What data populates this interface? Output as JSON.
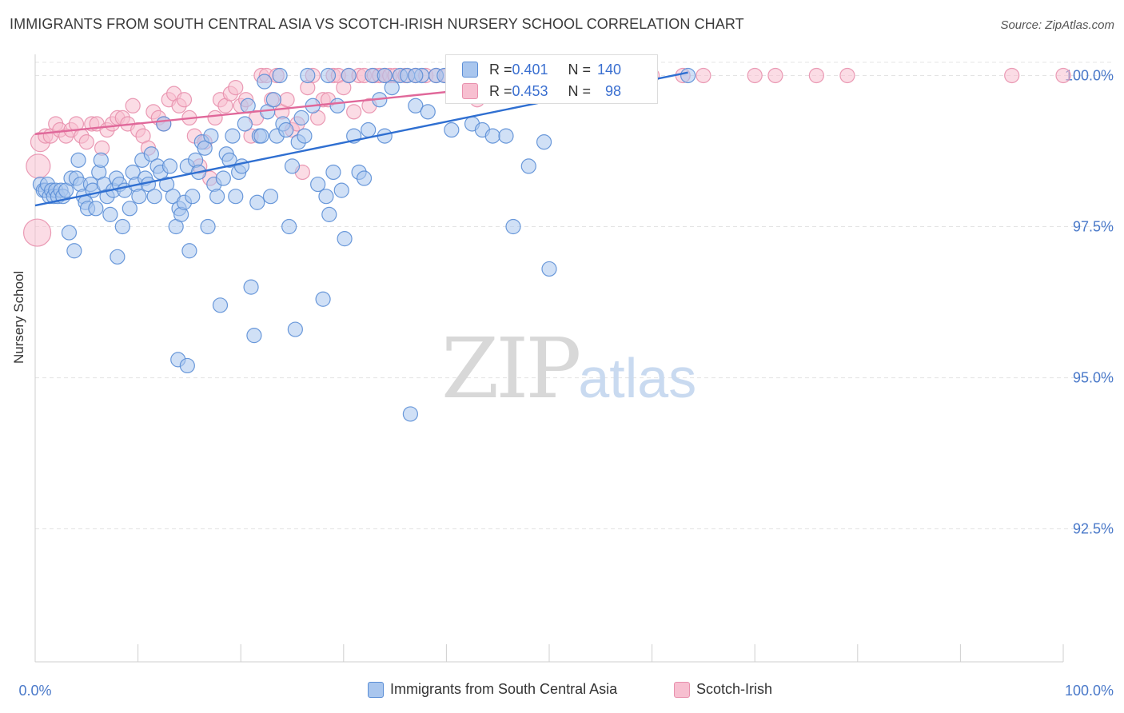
{
  "header": {
    "title": "IMMIGRANTS FROM SOUTH CENTRAL ASIA VS SCOTCH-IRISH NURSERY SCHOOL CORRELATION CHART",
    "source": "Source: ZipAtlas.com"
  },
  "watermark": {
    "zip": "ZIP",
    "atlas": "atlas"
  },
  "stats": {
    "row1": {
      "r_label": "R = ",
      "r": "0.401",
      "n_label": "N = ",
      "n": "140"
    },
    "row2": {
      "r_label": "R = ",
      "r": "0.453",
      "n_label": "N = ",
      "n": "98"
    }
  },
  "legend": {
    "blue_label": "Immigrants from South Central Asia",
    "pink_label": "Scotch-Irish"
  },
  "colors": {
    "blue_fill": "#a9c6ee",
    "blue_stroke": "#5b8ed6",
    "blue_line": "#2f6fd1",
    "pink_fill": "#f7bfd0",
    "pink_stroke": "#e890ad",
    "pink_line": "#e0689a",
    "tick_label": "#4a79c9",
    "grid": "#e4e4e4"
  },
  "chart_data": {
    "type": "scatter",
    "title": "IMMIGRANTS FROM SOUTH CENTRAL ASIA VS SCOTCH-IRISH NURSERY SCHOOL CORRELATION CHART",
    "xlabel": "",
    "ylabel": "Nursery School",
    "xlim": [
      0,
      100
    ],
    "ylim": [
      90.3,
      100.35
    ],
    "x_tick_labels": [
      "0.0%",
      "100.0%"
    ],
    "y_ticks": [
      92.5,
      95.0,
      97.5,
      100.0
    ],
    "y_tick_labels": [
      "92.5%",
      "95.0%",
      "97.5%",
      "100.0%"
    ],
    "grid": "horizontal dashed",
    "legend": "bottom-center",
    "series": [
      {
        "name": "Immigrants from South Central Asia",
        "color": "#a9c6ee",
        "trend": {
          "x": [
            0,
            63.5
          ],
          "y": [
            97.85,
            100.05
          ]
        },
        "points": [
          [
            0.5,
            98.2
          ],
          [
            0.8,
            98.1
          ],
          [
            1.0,
            98.1
          ],
          [
            1.2,
            98.2
          ],
          [
            1.4,
            98.0
          ],
          [
            1.6,
            98.1
          ],
          [
            1.8,
            98.0
          ],
          [
            2.0,
            98.1
          ],
          [
            2.2,
            98.0
          ],
          [
            2.5,
            98.1
          ],
          [
            2.7,
            98.0
          ],
          [
            3.0,
            98.1
          ],
          [
            3.3,
            97.4
          ],
          [
            3.5,
            98.3
          ],
          [
            3.8,
            97.1
          ],
          [
            4.0,
            98.3
          ],
          [
            4.2,
            98.6
          ],
          [
            4.4,
            98.2
          ],
          [
            4.7,
            98.0
          ],
          [
            4.9,
            97.9
          ],
          [
            5.1,
            97.8
          ],
          [
            5.4,
            98.2
          ],
          [
            5.6,
            98.1
          ],
          [
            5.9,
            97.8
          ],
          [
            6.2,
            98.4
          ],
          [
            6.4,
            98.6
          ],
          [
            6.7,
            98.2
          ],
          [
            7.0,
            98.0
          ],
          [
            7.3,
            97.7
          ],
          [
            7.6,
            98.1
          ],
          [
            7.9,
            98.3
          ],
          [
            8.2,
            98.2
          ],
          [
            8.5,
            97.5
          ],
          [
            8.7,
            98.1
          ],
          [
            8.0,
            97.0
          ],
          [
            9.2,
            97.8
          ],
          [
            9.5,
            98.4
          ],
          [
            9.8,
            98.2
          ],
          [
            10.1,
            98.0
          ],
          [
            10.4,
            98.6
          ],
          [
            10.7,
            98.3
          ],
          [
            11.0,
            98.2
          ],
          [
            11.3,
            98.7
          ],
          [
            11.6,
            98.0
          ],
          [
            11.9,
            98.5
          ],
          [
            12.2,
            98.4
          ],
          [
            12.5,
            99.2
          ],
          [
            12.8,
            98.2
          ],
          [
            13.1,
            98.5
          ],
          [
            13.4,
            98.0
          ],
          [
            13.7,
            97.5
          ],
          [
            14.0,
            97.8
          ],
          [
            14.2,
            97.7
          ],
          [
            14.5,
            97.9
          ],
          [
            14.8,
            98.5
          ],
          [
            15.0,
            97.1
          ],
          [
            15.3,
            98.0
          ],
          [
            15.6,
            98.6
          ],
          [
            15.9,
            98.4
          ],
          [
            16.2,
            98.9
          ],
          [
            16.5,
            98.8
          ],
          [
            16.8,
            97.5
          ],
          [
            17.1,
            99.0
          ],
          [
            17.4,
            98.2
          ],
          [
            17.7,
            98.0
          ],
          [
            18.0,
            96.2
          ],
          [
            18.3,
            98.3
          ],
          [
            18.6,
            98.7
          ],
          [
            18.9,
            98.6
          ],
          [
            19.2,
            99.0
          ],
          [
            19.5,
            98.0
          ],
          [
            19.8,
            98.4
          ],
          [
            20.1,
            98.5
          ],
          [
            20.4,
            99.2
          ],
          [
            20.7,
            99.5
          ],
          [
            21.0,
            96.5
          ],
          [
            21.3,
            95.7
          ],
          [
            21.6,
            97.9
          ],
          [
            21.8,
            99.0
          ],
          [
            22.0,
            99.0
          ],
          [
            22.3,
            99.9
          ],
          [
            22.6,
            99.4
          ],
          [
            22.9,
            98.0
          ],
          [
            23.2,
            99.6
          ],
          [
            23.5,
            99.0
          ],
          [
            23.8,
            100.0
          ],
          [
            24.1,
            99.2
          ],
          [
            24.4,
            99.1
          ],
          [
            24.7,
            97.5
          ],
          [
            25.0,
            98.5
          ],
          [
            25.3,
            95.8
          ],
          [
            25.6,
            98.9
          ],
          [
            25.9,
            99.3
          ],
          [
            26.2,
            99.0
          ],
          [
            26.5,
            100.0
          ],
          [
            27.0,
            99.5
          ],
          [
            27.5,
            98.2
          ],
          [
            28.0,
            96.3
          ],
          [
            28.3,
            98.0
          ],
          [
            28.6,
            97.7
          ],
          [
            29.0,
            98.4
          ],
          [
            29.4,
            99.5
          ],
          [
            29.8,
            98.1
          ],
          [
            30.1,
            97.3
          ],
          [
            30.5,
            100.0
          ],
          [
            31.0,
            99.0
          ],
          [
            31.5,
            98.4
          ],
          [
            32.0,
            98.3
          ],
          [
            32.4,
            99.1
          ],
          [
            32.8,
            100.0
          ],
          [
            33.5,
            99.6
          ],
          [
            34.0,
            99.0
          ],
          [
            34.7,
            99.8
          ],
          [
            35.5,
            100.0
          ],
          [
            36.2,
            100.0
          ],
          [
            37.0,
            99.5
          ],
          [
            37.6,
            100.0
          ],
          [
            38.2,
            99.4
          ],
          [
            39.0,
            100.0
          ],
          [
            39.8,
            100.0
          ],
          [
            40.5,
            99.1
          ],
          [
            41.5,
            100.0
          ],
          [
            42.5,
            99.2
          ],
          [
            43.5,
            99.1
          ],
          [
            44.5,
            99.0
          ],
          [
            45.0,
            100.0
          ],
          [
            45.8,
            99.0
          ],
          [
            46.5,
            97.5
          ],
          [
            47.2,
            99.8
          ],
          [
            48.0,
            98.5
          ],
          [
            48.8,
            100.0
          ],
          [
            49.5,
            98.9
          ],
          [
            50.0,
            96.8
          ],
          [
            28.5,
            100.0
          ],
          [
            36.5,
            94.4
          ],
          [
            13.9,
            95.3
          ],
          [
            14.8,
            95.2
          ],
          [
            37.0,
            100.0
          ],
          [
            34.0,
            100.0
          ],
          [
            63.5,
            100.0
          ]
        ]
      },
      {
        "name": "Scotch-Irish",
        "color": "#f7bfd0",
        "trend": {
          "x": [
            0,
            58.5
          ],
          "y": [
            99.03,
            100.05
          ]
        },
        "points": [
          [
            0.3,
            98.5
          ],
          [
            0.2,
            97.4
          ],
          [
            0.5,
            98.9
          ],
          [
            1.0,
            99.0
          ],
          [
            1.5,
            99.0
          ],
          [
            2.0,
            99.2
          ],
          [
            2.4,
            99.1
          ],
          [
            3.0,
            99.0
          ],
          [
            3.5,
            99.1
          ],
          [
            4.0,
            99.2
          ],
          [
            4.5,
            99.0
          ],
          [
            5.0,
            98.9
          ],
          [
            5.5,
            99.2
          ],
          [
            6.0,
            99.2
          ],
          [
            6.5,
            98.8
          ],
          [
            7.0,
            99.1
          ],
          [
            7.5,
            99.2
          ],
          [
            8.0,
            99.3
          ],
          [
            8.5,
            99.3
          ],
          [
            9.0,
            99.2
          ],
          [
            9.5,
            99.5
          ],
          [
            10.0,
            99.1
          ],
          [
            10.5,
            99.0
          ],
          [
            11.0,
            98.8
          ],
          [
            11.5,
            99.4
          ],
          [
            12.0,
            99.3
          ],
          [
            12.5,
            99.2
          ],
          [
            13.0,
            99.6
          ],
          [
            13.5,
            99.7
          ],
          [
            14.0,
            99.5
          ],
          [
            14.5,
            99.6
          ],
          [
            15.0,
            99.3
          ],
          [
            15.5,
            99.0
          ],
          [
            16.0,
            98.5
          ],
          [
            16.5,
            98.9
          ],
          [
            17.0,
            98.3
          ],
          [
            17.5,
            99.3
          ],
          [
            18.0,
            99.6
          ],
          [
            18.5,
            99.5
          ],
          [
            19.0,
            99.7
          ],
          [
            19.5,
            99.8
          ],
          [
            20.0,
            99.5
          ],
          [
            20.5,
            99.6
          ],
          [
            21.0,
            99.0
          ],
          [
            21.5,
            99.3
          ],
          [
            22.0,
            100.0
          ],
          [
            22.5,
            100.0
          ],
          [
            23.0,
            99.6
          ],
          [
            23.5,
            100.0
          ],
          [
            24.0,
            99.4
          ],
          [
            24.5,
            99.6
          ],
          [
            25.0,
            99.1
          ],
          [
            25.5,
            99.2
          ],
          [
            26.0,
            98.4
          ],
          [
            26.5,
            99.8
          ],
          [
            27.0,
            100.0
          ],
          [
            27.5,
            99.3
          ],
          [
            28.0,
            99.6
          ],
          [
            28.5,
            99.6
          ],
          [
            29.0,
            100.0
          ],
          [
            29.5,
            100.0
          ],
          [
            30.0,
            99.8
          ],
          [
            30.5,
            100.0
          ],
          [
            31.0,
            99.4
          ],
          [
            31.5,
            100.0
          ],
          [
            32.0,
            100.0
          ],
          [
            32.5,
            99.5
          ],
          [
            33.0,
            100.0
          ],
          [
            33.5,
            100.0
          ],
          [
            34.0,
            100.0
          ],
          [
            34.5,
            100.0
          ],
          [
            35.0,
            100.0
          ],
          [
            36.0,
            100.0
          ],
          [
            37.0,
            100.0
          ],
          [
            38.0,
            100.0
          ],
          [
            39.0,
            100.0
          ],
          [
            40.0,
            100.0
          ],
          [
            41.0,
            100.0
          ],
          [
            42.0,
            100.0
          ],
          [
            43.0,
            99.6
          ],
          [
            44.0,
            100.0
          ],
          [
            45.0,
            100.0
          ],
          [
            46.0,
            100.0
          ],
          [
            47.0,
            100.0
          ],
          [
            48.0,
            100.0
          ],
          [
            49.0,
            100.0
          ],
          [
            50.0,
            100.0
          ],
          [
            52.0,
            100.0
          ],
          [
            56.0,
            100.0
          ],
          [
            60.0,
            100.0
          ],
          [
            63.0,
            100.0
          ],
          [
            65.0,
            100.0
          ],
          [
            70.0,
            100.0
          ],
          [
            72.0,
            100.0
          ],
          [
            76.0,
            100.0
          ],
          [
            79.0,
            100.0
          ],
          [
            95.0,
            100.0
          ],
          [
            100.0,
            100.0
          ]
        ]
      }
    ]
  }
}
